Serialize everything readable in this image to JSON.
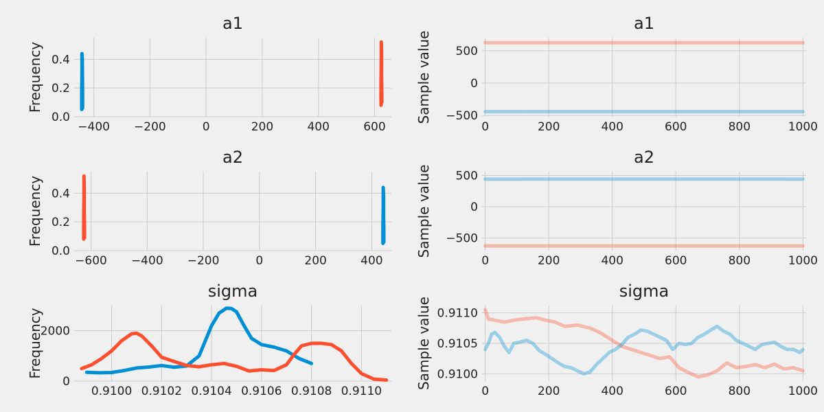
{
  "chart_data": [
    {
      "panel": "a1-density",
      "type": "line",
      "title": "a1",
      "xlabel": "",
      "ylabel": "Frequency",
      "xlim": [
        -470,
        660
      ],
      "ylim": [
        0,
        0.55
      ],
      "xticks": [
        -400,
        -200,
        0,
        200,
        400,
        600
      ],
      "xtick_labels": [
        "−400",
        "−200",
        "0",
        "200",
        "400",
        "600"
      ],
      "yticks": [
        0.0,
        0.2,
        0.4
      ],
      "ytick_labels": [
        "0.0",
        "0.2",
        "0.4"
      ],
      "grid": true,
      "series": [
        {
          "color": "#008fd5",
          "x": [
            -443,
            -443,
            -442,
            -442,
            -441,
            -441,
            -441,
            -440,
            -440
          ],
          "y": [
            0.05,
            0.17,
            0.3,
            0.44,
            0.4,
            0.28,
            0.36,
            0.18,
            0.06
          ]
        },
        {
          "color": "#fc4f30",
          "x": [
            623,
            623,
            624,
            624,
            625,
            625,
            626,
            626
          ],
          "y": [
            0.08,
            0.24,
            0.4,
            0.52,
            0.45,
            0.28,
            0.13,
            0.1
          ]
        }
      ]
    },
    {
      "panel": "a1-trace",
      "type": "line",
      "title": "a1",
      "xlabel": "",
      "ylabel": "Sample value",
      "xlim": [
        -10,
        1010
      ],
      "ylim": [
        -520,
        700
      ],
      "xticks": [
        0,
        200,
        400,
        600,
        800,
        1000
      ],
      "xtick_labels": [
        "0",
        "200",
        "400",
        "600",
        "800",
        "1000"
      ],
      "yticks": [
        -500,
        0,
        500
      ],
      "ytick_labels": [
        "−500",
        "0",
        "500"
      ],
      "grid": true,
      "series": [
        {
          "color": "#fc4f30",
          "x": [
            0,
            1000
          ],
          "y": [
            624,
            624
          ]
        },
        {
          "color": "#008fd5",
          "x": [
            0,
            1000
          ],
          "y": [
            -441,
            -441
          ]
        }
      ]
    },
    {
      "panel": "a2-density",
      "type": "line",
      "title": "a2",
      "xlabel": "",
      "ylabel": "Frequency",
      "xlim": [
        -660,
        470
      ],
      "ylim": [
        0,
        0.55
      ],
      "xticks": [
        -600,
        -400,
        -200,
        0,
        200,
        400
      ],
      "xtick_labels": [
        "−600",
        "−400",
        "−200",
        "0",
        "200",
        "400"
      ],
      "yticks": [
        0.0,
        0.2,
        0.4
      ],
      "ytick_labels": [
        "0.0",
        "0.2",
        "0.4"
      ],
      "grid": true,
      "series": [
        {
          "color": "#fc4f30",
          "x": [
            -626,
            -626,
            -625,
            -625,
            -624,
            -624,
            -623,
            -623
          ],
          "y": [
            0.08,
            0.22,
            0.38,
            0.52,
            0.44,
            0.26,
            0.18,
            0.09
          ]
        },
        {
          "color": "#008fd5",
          "x": [
            440,
            440,
            441,
            441,
            442,
            442,
            443,
            443
          ],
          "y": [
            0.05,
            0.18,
            0.3,
            0.44,
            0.38,
            0.24,
            0.14,
            0.06
          ]
        }
      ]
    },
    {
      "panel": "a2-trace",
      "type": "line",
      "title": "a2",
      "xlabel": "",
      "ylabel": "Sample value",
      "xlim": [
        -10,
        1010
      ],
      "ylim": [
        -700,
        560
      ],
      "xticks": [
        0,
        200,
        400,
        600,
        800,
        1000
      ],
      "xtick_labels": [
        "0",
        "200",
        "400",
        "600",
        "800",
        "1000"
      ],
      "yticks": [
        -500,
        0,
        500
      ],
      "ytick_labels": [
        "−500",
        "0",
        "500"
      ],
      "grid": true,
      "series": [
        {
          "color": "#008fd5",
          "x": [
            0,
            1000
          ],
          "y": [
            441,
            441
          ]
        },
        {
          "color": "#fc4f30",
          "x": [
            0,
            1000
          ],
          "y": [
            -624,
            -624
          ]
        }
      ]
    },
    {
      "panel": "sigma-density",
      "type": "line",
      "title": "sigma",
      "xlabel": "",
      "ylabel": "Frequency",
      "xlim": [
        0.90985,
        0.91112
      ],
      "ylim": [
        0,
        3000
      ],
      "xticks": [
        0.91,
        0.9102,
        0.9104,
        0.9106,
        0.9108,
        0.911
      ],
      "xtick_labels": [
        "0.9100",
        "0.9102",
        "0.9104",
        "0.9106",
        "0.9108",
        "0.9110"
      ],
      "yticks": [
        0,
        2000
      ],
      "ytick_labels": [
        "0",
        "2000"
      ],
      "grid": true,
      "series": [
        {
          "color": "#008fd5",
          "x": [
            0.9099,
            0.90995,
            0.91,
            0.91005,
            0.9101,
            0.91015,
            0.9102,
            0.91025,
            0.9103,
            0.91035,
            0.9104,
            0.91043,
            0.91046,
            0.91048,
            0.9105,
            0.91053,
            0.91056,
            0.9106,
            0.91065,
            0.9107,
            0.91075,
            0.9108
          ],
          "y": [
            350,
            330,
            340,
            420,
            520,
            560,
            620,
            550,
            600,
            1000,
            2200,
            2700,
            2900,
            2880,
            2750,
            2200,
            1700,
            1450,
            1350,
            1200,
            900,
            700
          ]
        },
        {
          "color": "#fc4f30",
          "x": [
            0.90988,
            0.90992,
            0.90996,
            0.91,
            0.91004,
            0.91008,
            0.9101,
            0.91012,
            0.91016,
            0.9102,
            0.91025,
            0.9103,
            0.91035,
            0.9104,
            0.91045,
            0.9105,
            0.91055,
            0.9106,
            0.91065,
            0.9107,
            0.91073,
            0.91076,
            0.9108,
            0.91084,
            0.91088,
            0.91092,
            0.91096,
            0.911,
            0.91105,
            0.9111
          ],
          "y": [
            500,
            650,
            900,
            1200,
            1600,
            1880,
            1900,
            1800,
            1400,
            950,
            780,
            620,
            570,
            650,
            700,
            590,
            400,
            450,
            420,
            650,
            1050,
            1400,
            1500,
            1500,
            1450,
            1200,
            700,
            300,
            80,
            40
          ]
        }
      ]
    },
    {
      "panel": "sigma-trace",
      "type": "line",
      "title": "sigma",
      "xlabel": "",
      "ylabel": "Sample value",
      "xlim": [
        -10,
        1010
      ],
      "ylim": [
        0.90988,
        0.91112
      ],
      "xticks": [
        0,
        200,
        400,
        600,
        800,
        1000
      ],
      "xtick_labels": [
        "0",
        "200",
        "400",
        "600",
        "800",
        "1000"
      ],
      "yticks": [
        0.91,
        0.9105,
        0.911
      ],
      "ytick_labels": [
        "0.9100",
        "0.9105",
        "0.9110"
      ],
      "grid": true,
      "series": [
        {
          "color": "#fc4f30",
          "x": [
            0,
            10,
            30,
            60,
            90,
            120,
            160,
            190,
            220,
            250,
            290,
            330,
            360,
            400,
            430,
            460,
            490,
            520,
            550,
            580,
            610,
            640,
            670,
            700,
            730,
            760,
            790,
            820,
            850,
            880,
            910,
            940,
            970,
            1000
          ],
          "y": [
            0.91105,
            0.9109,
            0.91088,
            0.91085,
            0.91088,
            0.9109,
            0.91092,
            0.91088,
            0.91085,
            0.91078,
            0.9108,
            0.91075,
            0.91068,
            0.91055,
            0.91045,
            0.9104,
            0.91035,
            0.9103,
            0.91025,
            0.91028,
            0.9101,
            0.91002,
            0.90995,
            0.90998,
            0.91005,
            0.91018,
            0.9101,
            0.91012,
            0.91015,
            0.9101,
            0.91016,
            0.91008,
            0.9101,
            0.91005
          ]
        },
        {
          "color": "#008fd5",
          "x": [
            0,
            10,
            20,
            30,
            45,
            60,
            75,
            90,
            110,
            130,
            150,
            170,
            190,
            210,
            230,
            250,
            270,
            290,
            310,
            330,
            350,
            370,
            390,
            410,
            430,
            450,
            470,
            490,
            510,
            530,
            550,
            570,
            590,
            610,
            630,
            650,
            670,
            690,
            710,
            730,
            750,
            770,
            790,
            810,
            830,
            850,
            870,
            890,
            910,
            930,
            950,
            970,
            990,
            1000
          ],
          "y": [
            0.9104,
            0.9105,
            0.91065,
            0.91068,
            0.9106,
            0.91045,
            0.91035,
            0.9105,
            0.91052,
            0.91055,
            0.9105,
            0.91038,
            0.91032,
            0.91025,
            0.91018,
            0.91012,
            0.9101,
            0.91005,
            0.91,
            0.91003,
            0.91015,
            0.91025,
            0.91035,
            0.9104,
            0.91048,
            0.9106,
            0.91065,
            0.91072,
            0.9107,
            0.91065,
            0.9106,
            0.91055,
            0.9104,
            0.9105,
            0.91048,
            0.9105,
            0.9106,
            0.91065,
            0.91072,
            0.91078,
            0.9107,
            0.91065,
            0.91055,
            0.9105,
            0.91045,
            0.9104,
            0.91048,
            0.9105,
            0.91052,
            0.91045,
            0.9104,
            0.9104,
            0.91035,
            0.9104
          ]
        }
      ]
    }
  ]
}
